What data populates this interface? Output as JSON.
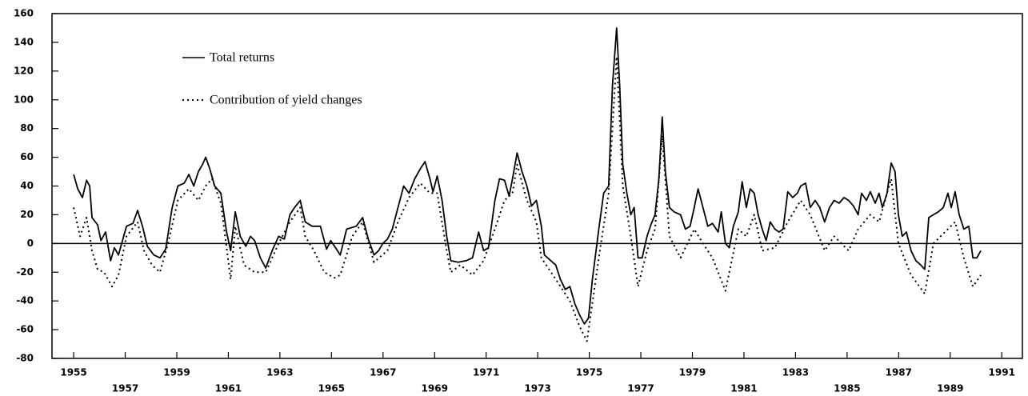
{
  "chart_data": {
    "type": "line",
    "xlim": [
      1954.16,
      1991.8
    ],
    "ylim": [
      -80,
      160
    ],
    "xticks": [
      1955,
      1957,
      1959,
      1961,
      1963,
      1965,
      1967,
      1969,
      1971,
      1973,
      1975,
      1977,
      1979,
      1981,
      1983,
      1985,
      1987,
      1989,
      1991
    ],
    "yticks": [
      -80,
      -60,
      -40,
      -20,
      0,
      20,
      40,
      60,
      80,
      100,
      120,
      140,
      160
    ],
    "legend": "upper left",
    "series": [
      {
        "name": "Total returns",
        "color": "#000000",
        "style": "solid",
        "x": [
          1955.0,
          1955.16,
          1955.34,
          1955.5,
          1955.62,
          1955.71,
          1955.93,
          1956.06,
          1956.24,
          1956.43,
          1956.58,
          1956.74,
          1957.05,
          1957.3,
          1957.48,
          1957.67,
          1957.86,
          1958.11,
          1958.35,
          1958.57,
          1958.82,
          1959.04,
          1959.29,
          1959.47,
          1959.66,
          1959.84,
          1960.0,
          1960.12,
          1960.28,
          1960.47,
          1960.71,
          1960.93,
          1961.09,
          1961.27,
          1961.46,
          1961.68,
          1961.86,
          1962.02,
          1962.24,
          1962.45,
          1962.7,
          1962.95,
          1963.17,
          1963.39,
          1963.57,
          1963.79,
          1963.98,
          1964.25,
          1964.57,
          1964.81,
          1964.97,
          1965.12,
          1965.34,
          1965.59,
          1965.96,
          1966.21,
          1966.43,
          1966.65,
          1966.83,
          1966.99,
          1967.17,
          1967.36,
          1967.58,
          1967.8,
          1968.01,
          1968.23,
          1968.45,
          1968.63,
          1968.82,
          1968.94,
          1969.1,
          1969.29,
          1969.47,
          1969.63,
          1969.91,
          1970.22,
          1970.47,
          1970.71,
          1970.9,
          1971.09,
          1971.34,
          1971.52,
          1971.71,
          1971.89,
          1972.02,
          1972.2,
          1972.39,
          1972.58,
          1972.76,
          1972.95,
          1973.14,
          1973.26,
          1973.51,
          1973.7,
          1973.88,
          1974.07,
          1974.25,
          1974.44,
          1974.63,
          1974.81,
          1974.97,
          1975.12,
          1975.37,
          1975.56,
          1975.75,
          1975.9,
          1976.06,
          1976.18,
          1976.3,
          1976.46,
          1976.61,
          1976.74,
          1976.89,
          1977.05,
          1977.24,
          1977.39,
          1977.55,
          1977.7,
          1977.83,
          1977.95,
          1978.11,
          1978.29,
          1978.54,
          1978.73,
          1978.91,
          1979.07,
          1979.22,
          1979.41,
          1979.6,
          1979.78,
          1980.0,
          1980.12,
          1980.28,
          1980.43,
          1980.59,
          1980.78,
          1980.93,
          1981.09,
          1981.24,
          1981.4,
          1981.55,
          1981.71,
          1981.86,
          1982.02,
          1982.2,
          1982.36,
          1982.52,
          1982.7,
          1982.89,
          1983.07,
          1983.2,
          1983.39,
          1983.57,
          1983.76,
          1983.94,
          1984.13,
          1984.32,
          1984.5,
          1984.69,
          1984.88,
          1985.06,
          1985.25,
          1985.43,
          1985.56,
          1985.75,
          1985.9,
          1986.09,
          1986.24,
          1986.37,
          1986.55,
          1986.71,
          1986.86,
          1986.99,
          1987.14,
          1987.3,
          1987.48,
          1987.67,
          1987.86,
          1988.01,
          1988.17,
          1988.35,
          1988.54,
          1988.73,
          1988.91,
          1989.04,
          1989.19,
          1989.35,
          1989.53,
          1989.72,
          1989.88,
          1990.03,
          1990.19
        ],
        "values": [
          48,
          38,
          32,
          44,
          40,
          18,
          13,
          2,
          8,
          -12,
          -3,
          -8,
          12,
          14,
          23,
          12,
          -2,
          -8,
          -10,
          -4,
          25,
          40,
          42,
          48,
          40,
          50,
          55,
          60,
          52,
          40,
          35,
          8,
          -5,
          22,
          5,
          -2,
          5,
          2,
          -10,
          -17,
          -5,
          5,
          3,
          20,
          25,
          30,
          15,
          12,
          12,
          -4,
          2,
          -2,
          -8,
          10,
          12,
          18,
          3,
          -8,
          -5,
          0,
          3,
          10,
          25,
          40,
          35,
          45,
          52,
          57,
          45,
          36,
          47,
          30,
          5,
          -12,
          -13,
          -12,
          -10,
          8,
          -5,
          -3,
          30,
          45,
          44,
          33,
          45,
          63,
          50,
          40,
          26,
          30,
          12,
          -8,
          -12,
          -15,
          -25,
          -32,
          -30,
          -42,
          -50,
          -56,
          -52,
          -25,
          10,
          35,
          40,
          110,
          150,
          110,
          55,
          35,
          20,
          25,
          -10,
          -10,
          5,
          13,
          20,
          45,
          88,
          50,
          25,
          22,
          20,
          10,
          12,
          25,
          38,
          25,
          12,
          14,
          8,
          22,
          0,
          -3,
          12,
          22,
          43,
          25,
          38,
          35,
          20,
          10,
          2,
          15,
          10,
          8,
          10,
          36,
          32,
          35,
          40,
          42,
          25,
          30,
          25,
          15,
          25,
          30,
          28,
          32,
          30,
          26,
          20,
          35,
          30,
          36,
          28,
          35,
          25,
          35,
          56,
          50,
          20,
          5,
          8,
          -5,
          -12,
          -15,
          -18,
          18,
          20,
          22,
          25,
          35,
          25,
          36,
          20,
          10,
          12,
          -10,
          -10,
          -5
        ]
      },
      {
        "name": "Contribution of yield changes",
        "color": "#000000",
        "style": "dotted",
        "x": [
          1955.0,
          1955.25,
          1955.5,
          1955.71,
          1955.93,
          1956.18,
          1956.49,
          1956.74,
          1957.05,
          1957.48,
          1957.73,
          1958.04,
          1958.35,
          1958.66,
          1959.04,
          1959.47,
          1959.84,
          1960.12,
          1960.37,
          1960.71,
          1961.09,
          1961.27,
          1961.61,
          1962.02,
          1962.45,
          1962.95,
          1963.39,
          1963.79,
          1963.98,
          1964.32,
          1964.72,
          1965.12,
          1965.34,
          1965.81,
          1966.21,
          1966.65,
          1967.17,
          1967.58,
          1968.01,
          1968.45,
          1968.82,
          1969.1,
          1969.47,
          1969.63,
          1970.0,
          1970.47,
          1970.9,
          1971.34,
          1971.71,
          1972.02,
          1972.2,
          1972.58,
          1972.95,
          1973.14,
          1973.7,
          1974.25,
          1974.63,
          1974.91,
          1975.37,
          1975.75,
          1976.06,
          1976.3,
          1976.61,
          1976.89,
          1977.24,
          1977.55,
          1977.83,
          1978.11,
          1978.54,
          1979.07,
          1979.41,
          1979.78,
          1980.28,
          1980.78,
          1981.09,
          1981.4,
          1981.71,
          1982.2,
          1982.7,
          1983.2,
          1983.57,
          1984.13,
          1984.5,
          1985.06,
          1985.43,
          1985.9,
          1986.24,
          1986.71,
          1986.99,
          1987.48,
          1988.01,
          1988.35,
          1988.91,
          1989.19,
          1989.53,
          1989.88,
          1990.19
        ],
        "values": [
          25,
          5,
          18,
          -5,
          -18,
          -20,
          -30,
          -22,
          5,
          15,
          -5,
          -15,
          -20,
          0,
          30,
          38,
          30,
          40,
          45,
          28,
          -25,
          12,
          -15,
          -20,
          -20,
          0,
          15,
          25,
          5,
          -5,
          -20,
          -24,
          -22,
          5,
          15,
          -13,
          -5,
          15,
          32,
          42,
          35,
          35,
          -5,
          -20,
          -15,
          -22,
          -12,
          10,
          30,
          35,
          55,
          30,
          15,
          -10,
          -25,
          -40,
          -58,
          -68,
          -10,
          35,
          130,
          40,
          5,
          -30,
          -5,
          10,
          75,
          5,
          -10,
          10,
          0,
          -10,
          -33,
          10,
          5,
          20,
          -5,
          -3,
          15,
          30,
          20,
          -5,
          5,
          -5,
          10,
          20,
          15,
          45,
          0,
          -22,
          -35,
          0,
          10,
          15,
          -10,
          -30,
          -22
        ]
      }
    ]
  }
}
